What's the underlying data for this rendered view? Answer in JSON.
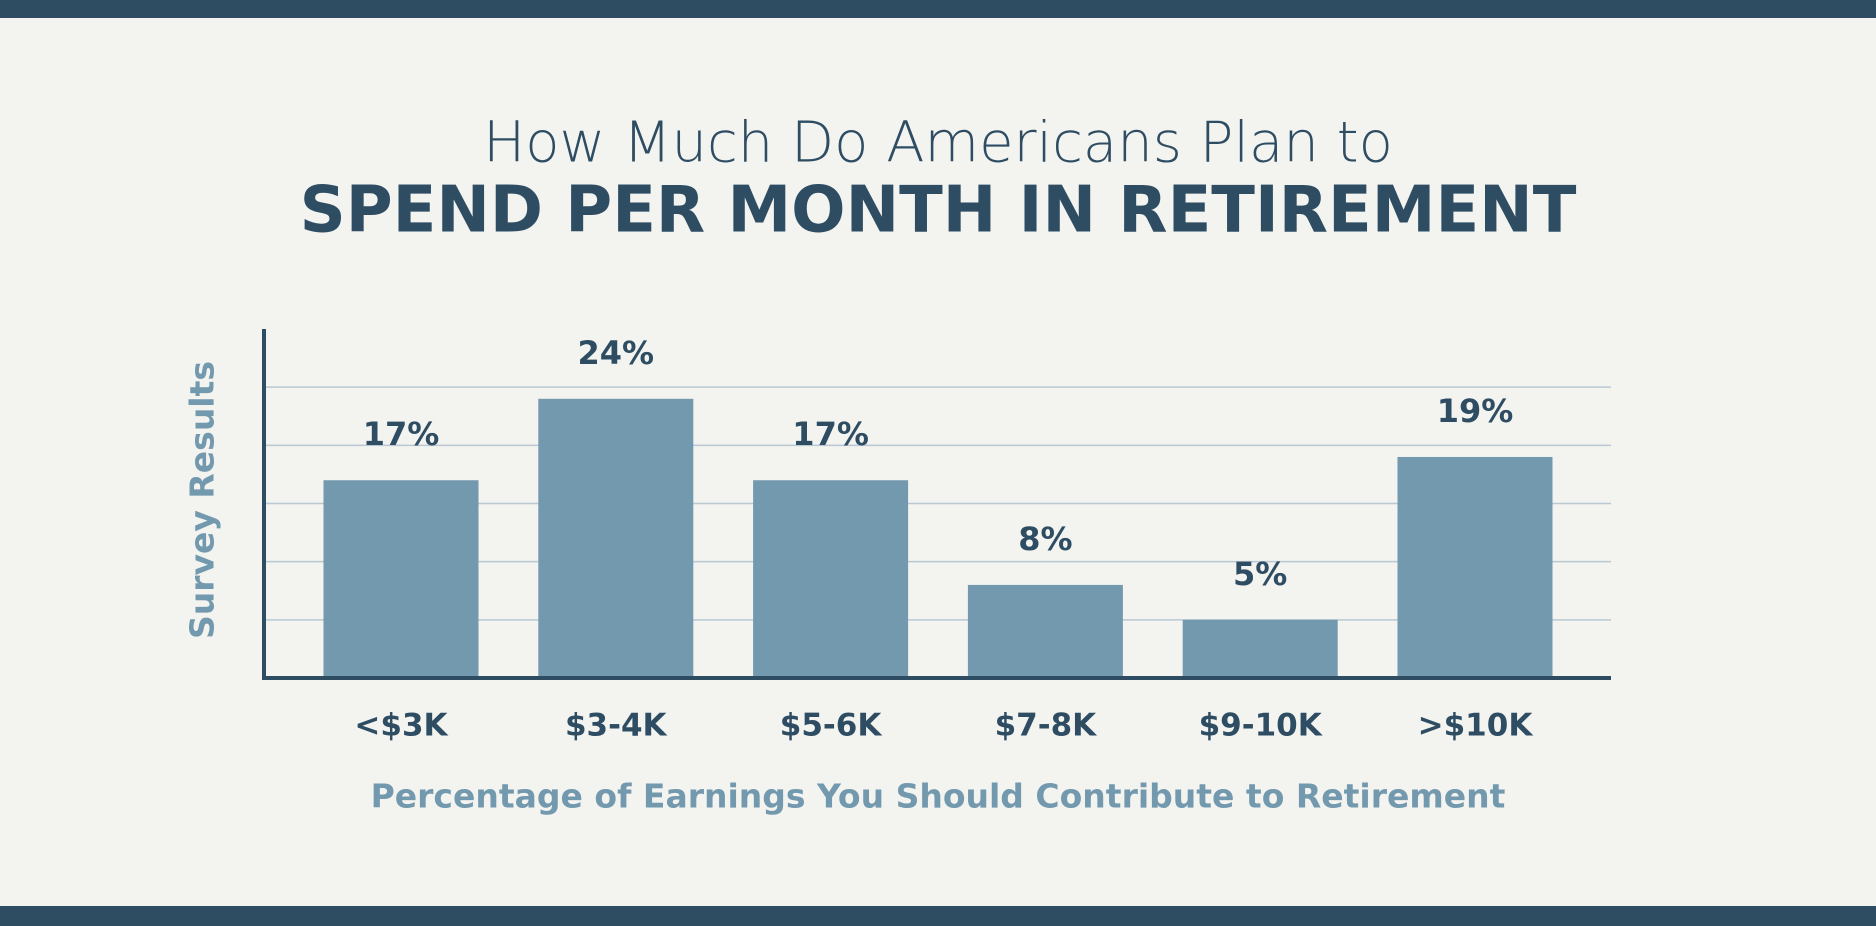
{
  "chart_data": {
    "type": "bar",
    "title": "How Much Do Americans Plan to",
    "subtitle": "SPEND PER MONTH IN RETIREMENT",
    "x_label": "Percentage of Earnings You Should Contribute to Retirement",
    "y_label": "Survey Results",
    "categories": [
      "<$3K",
      "$3-4K",
      "$5-6K",
      "$7-8K",
      "$9-10K",
      ">$10K"
    ],
    "values": [
      17,
      24,
      17,
      8,
      5,
      19
    ],
    "value_labels": [
      "17%",
      "24%",
      "17%",
      "8%",
      "5%",
      "19%"
    ],
    "color": "#7399ae",
    "ylim": [
      0,
      30
    ],
    "yticks": [
      5,
      10,
      15,
      20,
      25
    ],
    "grid": true
  }
}
